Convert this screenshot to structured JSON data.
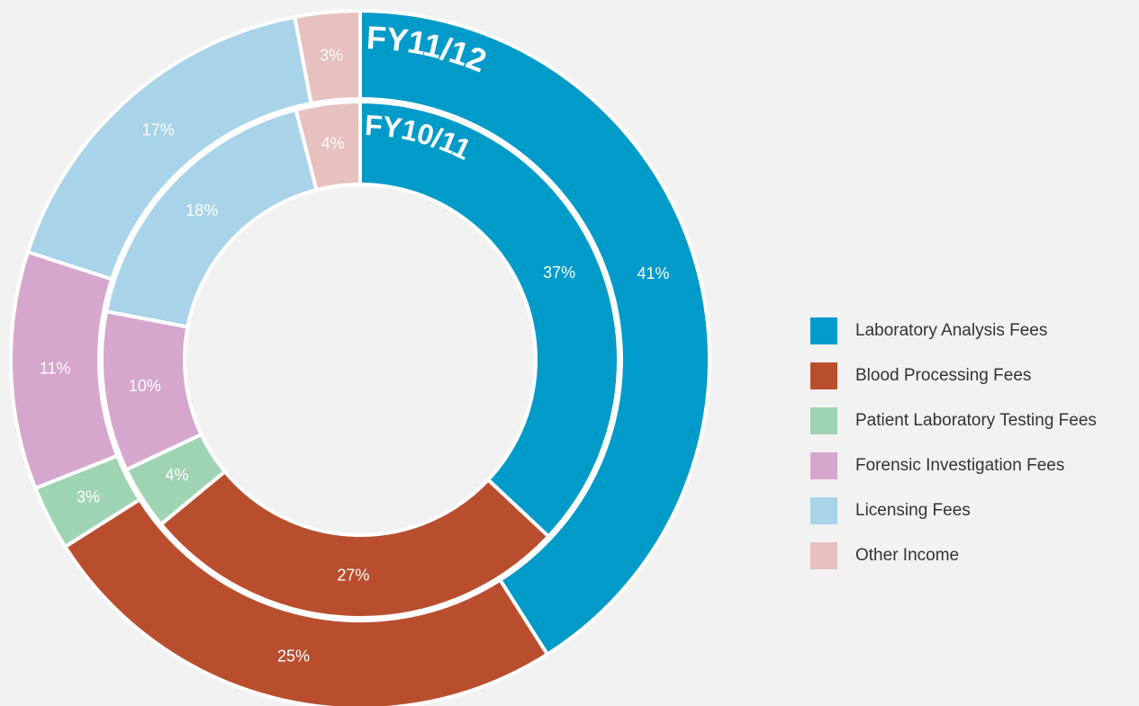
{
  "chart_data": {
    "type": "donut",
    "categories": [
      "Laboratory Analysis Fees",
      "Blood Processing Fees",
      "Patient Laboratory Testing Fees",
      "Forensic Investigation Fees",
      "Licensing Fees",
      "Other Income"
    ],
    "colors": [
      "#009bc9",
      "#b94e2e",
      "#9fd4b3",
      "#d6a6cd",
      "#a8d3e8",
      "#e6c1bf"
    ],
    "series": [
      {
        "name": "FY11/12",
        "values": [
          41,
          25,
          3,
          11,
          17,
          3
        ],
        "value_labels": [
          "41%",
          "25%",
          "3%",
          "11%",
          "17%",
          "3%"
        ]
      },
      {
        "name": "FY10/11",
        "values": [
          37,
          27,
          4,
          10,
          18,
          4
        ],
        "value_labels": [
          "37%",
          "27%",
          "4%",
          "10%",
          "18%",
          "4%"
        ]
      }
    ],
    "legend": "right"
  }
}
